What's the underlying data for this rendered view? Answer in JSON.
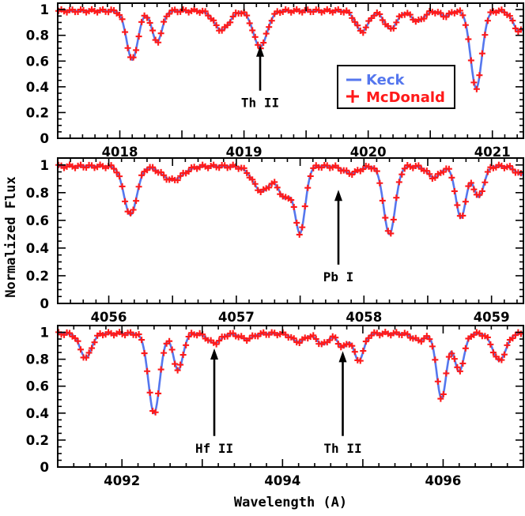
{
  "chart_data": [
    {
      "type": "line",
      "xlim": [
        4017.5,
        4021.25
      ],
      "ylim": [
        0,
        1.05
      ],
      "xticks": [
        4018,
        4019,
        4020,
        4021
      ],
      "xtick_labels": [
        "4018",
        "4019",
        "4020",
        "4021"
      ],
      "yticks": [
        0,
        0.2,
        0.4,
        0.6,
        0.8,
        1
      ],
      "ytick_labels": [
        "0",
        "0.2",
        "0.4",
        "0.6",
        "0.8",
        "1"
      ],
      "continuum": 0.99,
      "lines": [
        {
          "center": 4018.1,
          "depth": 0.38,
          "sigma": 0.045
        },
        {
          "center": 4018.3,
          "depth": 0.24,
          "sigma": 0.04
        },
        {
          "center": 4018.82,
          "depth": 0.15,
          "sigma": 0.06
        },
        {
          "center": 4019.13,
          "depth": 0.28,
          "sigma": 0.055
        },
        {
          "center": 4019.95,
          "depth": 0.16,
          "sigma": 0.05
        },
        {
          "center": 4020.18,
          "depth": 0.14,
          "sigma": 0.05
        },
        {
          "center": 4020.4,
          "depth": 0.08,
          "sigma": 0.05
        },
        {
          "center": 4020.62,
          "depth": 0.04,
          "sigma": 0.04
        },
        {
          "center": 4020.87,
          "depth": 0.6,
          "sigma": 0.045
        },
        {
          "center": 4021.22,
          "depth": 0.16,
          "sigma": 0.05
        }
      ],
      "series": [
        {
          "name": "Keck",
          "style": "line",
          "color": "#5577ee"
        },
        {
          "name": "McDonald",
          "style": "plus",
          "color": "#ff1a1a"
        }
      ],
      "legend": {
        "position": "right",
        "entries": [
          "Keck",
          "McDonald"
        ]
      },
      "annotations": [
        {
          "text": "Th II",
          "x": 4019.13,
          "arrow_from": 0.37,
          "arrow_to": 0.72
        }
      ]
    },
    {
      "type": "line",
      "xlim": [
        4055.6,
        4059.25
      ],
      "ylim": [
        0,
        1.05
      ],
      "xticks": [
        4056,
        4057,
        4058,
        4059
      ],
      "xtick_labels": [
        "4056",
        "4057",
        "4058",
        "4059"
      ],
      "yticks": [
        0,
        0.2,
        0.4,
        0.6,
        0.8,
        1
      ],
      "ytick_labels": [
        "0",
        "0.2",
        "0.4",
        "0.6",
        "0.8",
        "1"
      ],
      "continuum": 0.99,
      "lines": [
        {
          "center": 4056.17,
          "depth": 0.35,
          "sigma": 0.05
        },
        {
          "center": 4056.5,
          "depth": 0.1,
          "sigma": 0.08
        },
        {
          "center": 4057.2,
          "depth": 0.18,
          "sigma": 0.07
        },
        {
          "center": 4057.38,
          "depth": 0.22,
          "sigma": 0.05
        },
        {
          "center": 4057.5,
          "depth": 0.47,
          "sigma": 0.04
        },
        {
          "center": 4057.9,
          "depth": 0.05,
          "sigma": 0.06
        },
        {
          "center": 4058.2,
          "depth": 0.49,
          "sigma": 0.045
        },
        {
          "center": 4058.55,
          "depth": 0.08,
          "sigma": 0.05
        },
        {
          "center": 4058.76,
          "depth": 0.37,
          "sigma": 0.04
        },
        {
          "center": 4058.9,
          "depth": 0.22,
          "sigma": 0.04
        },
        {
          "center": 4059.24,
          "depth": 0.06,
          "sigma": 0.05
        }
      ],
      "series": [
        {
          "name": "Keck",
          "style": "line",
          "color": "#5577ee"
        },
        {
          "name": "McDonald",
          "style": "plus",
          "color": "#ff1a1a"
        }
      ],
      "annotations": [
        {
          "text": "Pb I",
          "x": 4057.8,
          "arrow_from": 0.28,
          "arrow_to": 0.82
        }
      ]
    },
    {
      "type": "line",
      "xlim": [
        4091.2,
        4097
      ],
      "ylim": [
        0,
        1.05
      ],
      "xticks": [
        4092,
        4094,
        4096
      ],
      "xtick_labels": [
        "4092",
        "4094",
        "4096"
      ],
      "yticks": [
        0,
        0.2,
        0.4,
        0.6,
        0.8,
        1
      ],
      "ytick_labels": [
        "0",
        "0.2",
        "0.4",
        "0.6",
        "0.8",
        "1"
      ],
      "continuum": 0.99,
      "xlabel": "Wavelength (A)",
      "lines": [
        {
          "center": 4091.55,
          "depth": 0.18,
          "sigma": 0.07
        },
        {
          "center": 4092.4,
          "depth": 0.59,
          "sigma": 0.07
        },
        {
          "center": 4092.7,
          "depth": 0.27,
          "sigma": 0.06
        },
        {
          "center": 4093.15,
          "depth": 0.07,
          "sigma": 0.08
        },
        {
          "center": 4093.55,
          "depth": 0.04,
          "sigma": 0.08
        },
        {
          "center": 4094.2,
          "depth": 0.06,
          "sigma": 0.08
        },
        {
          "center": 4094.5,
          "depth": 0.08,
          "sigma": 0.07
        },
        {
          "center": 4094.75,
          "depth": 0.1,
          "sigma": 0.06
        },
        {
          "center": 4094.95,
          "depth": 0.2,
          "sigma": 0.06
        },
        {
          "center": 4095.7,
          "depth": 0.05,
          "sigma": 0.08
        },
        {
          "center": 4095.98,
          "depth": 0.48,
          "sigma": 0.06
        },
        {
          "center": 4096.2,
          "depth": 0.28,
          "sigma": 0.06
        },
        {
          "center": 4096.7,
          "depth": 0.2,
          "sigma": 0.08
        }
      ],
      "series": [
        {
          "name": "Keck",
          "style": "line",
          "color": "#5577ee"
        },
        {
          "name": "McDonald",
          "style": "plus",
          "color": "#ff1a1a"
        }
      ],
      "annotations": [
        {
          "text": "Hf II",
          "x": 4093.15,
          "arrow_from": 0.23,
          "arrow_to": 0.88
        },
        {
          "text": "Th II",
          "x": 4094.75,
          "arrow_from": 0.23,
          "arrow_to": 0.86
        }
      ]
    }
  ],
  "ylabel": "Normalized Flux",
  "legend": {
    "keck": "Keck",
    "mcdonald": "McDonald",
    "keck_color": "#5577ee",
    "mcdonald_color": "#ff1a1a"
  }
}
